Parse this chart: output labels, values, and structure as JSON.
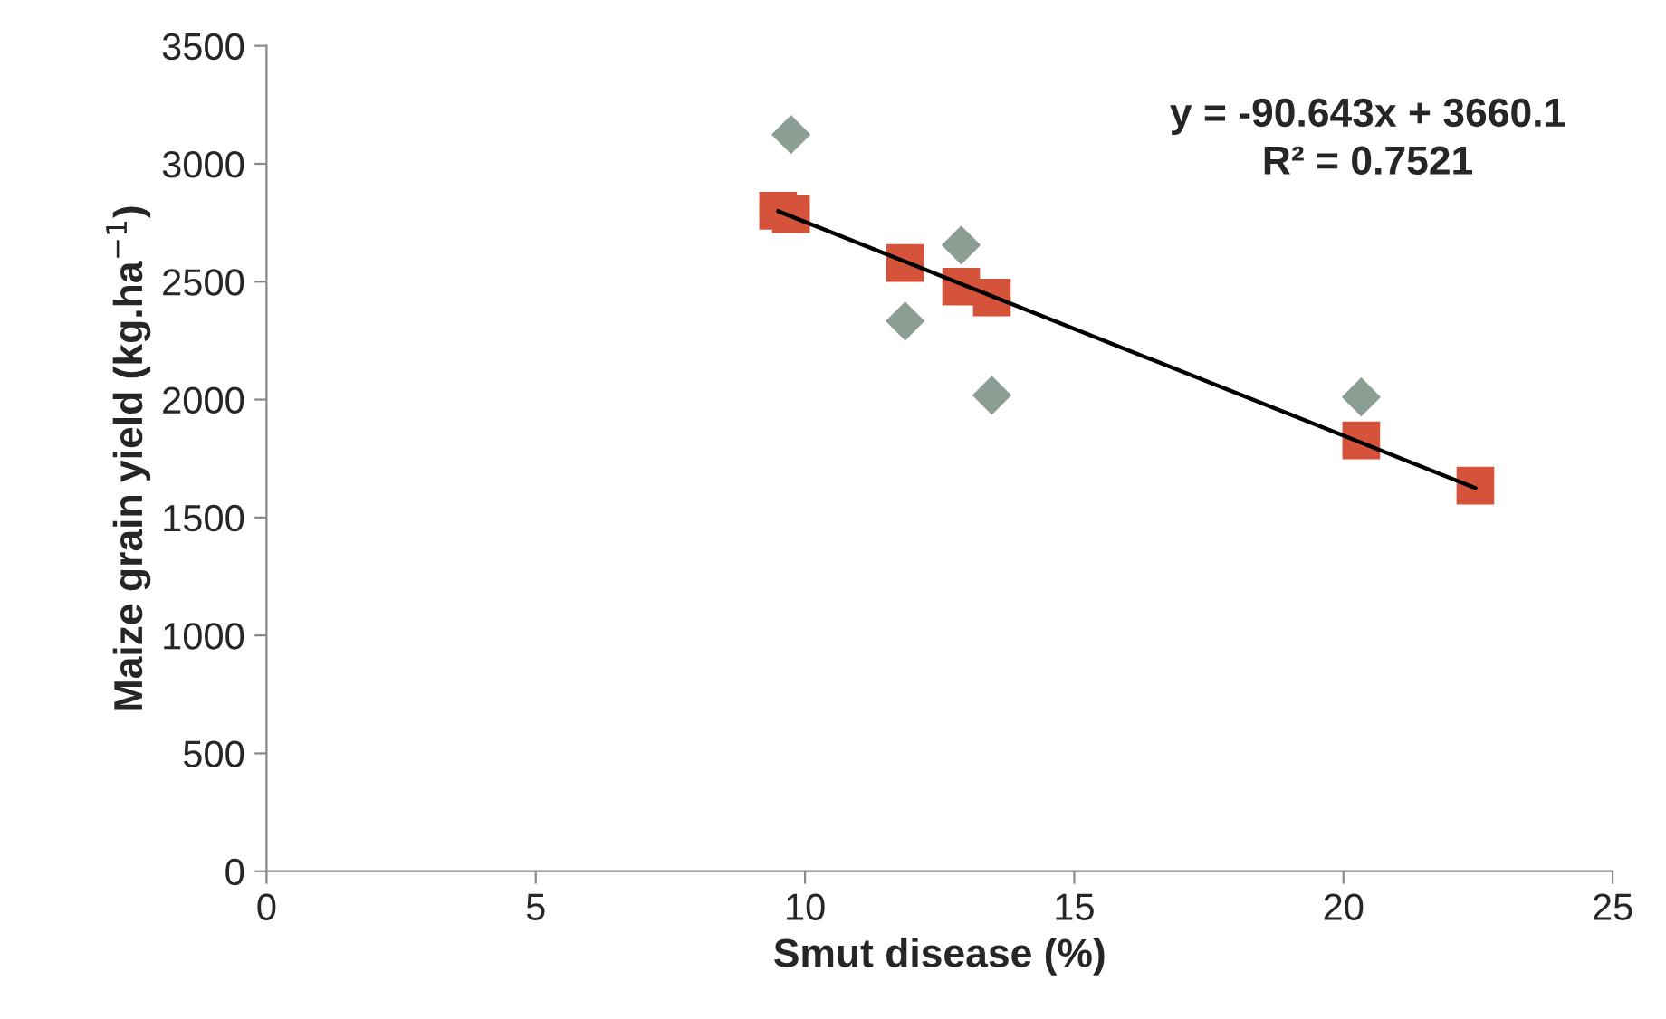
{
  "chart_data": {
    "type": "scatter",
    "xlabel": "Smut disease (%)",
    "ylabel": "Maize grain yield (kg.ha$^{−1}$)",
    "annotations": [
      "y = -90.643x + 3660.1",
      "R² = 0.7521"
    ],
    "xlim": [
      0,
      25
    ],
    "xticks": [
      0,
      5,
      10,
      15,
      20,
      25
    ],
    "ylim": [
      0,
      3500
    ],
    "yticks": [
      0,
      500,
      1000,
      1500,
      2000,
      2500,
      3000,
      3500
    ],
    "grid": false,
    "legend": false,
    "series": [
      {
        "marker": "diamond",
        "color": "#8c9e94",
        "x": [
          9.74,
          11.86,
          12.9,
          13.47,
          20.33
        ],
        "values": [
          3124,
          2333,
          2655,
          2018,
          2011
        ]
      },
      {
        "marker": "square",
        "color": "#d5533b",
        "x": [
          9.5,
          9.74,
          11.86,
          12.9,
          13.47,
          20.33,
          22.45
        ],
        "values": [
          2801,
          2786,
          2579,
          2479,
          2433,
          1827,
          1635
        ]
      },
      {
        "type": "line",
        "marker": "none",
        "line_style": "solid",
        "color": "#000000",
        "x": [
          9.5,
          22.45
        ],
        "values": [
          2799,
          1625
        ]
      }
    ]
  }
}
